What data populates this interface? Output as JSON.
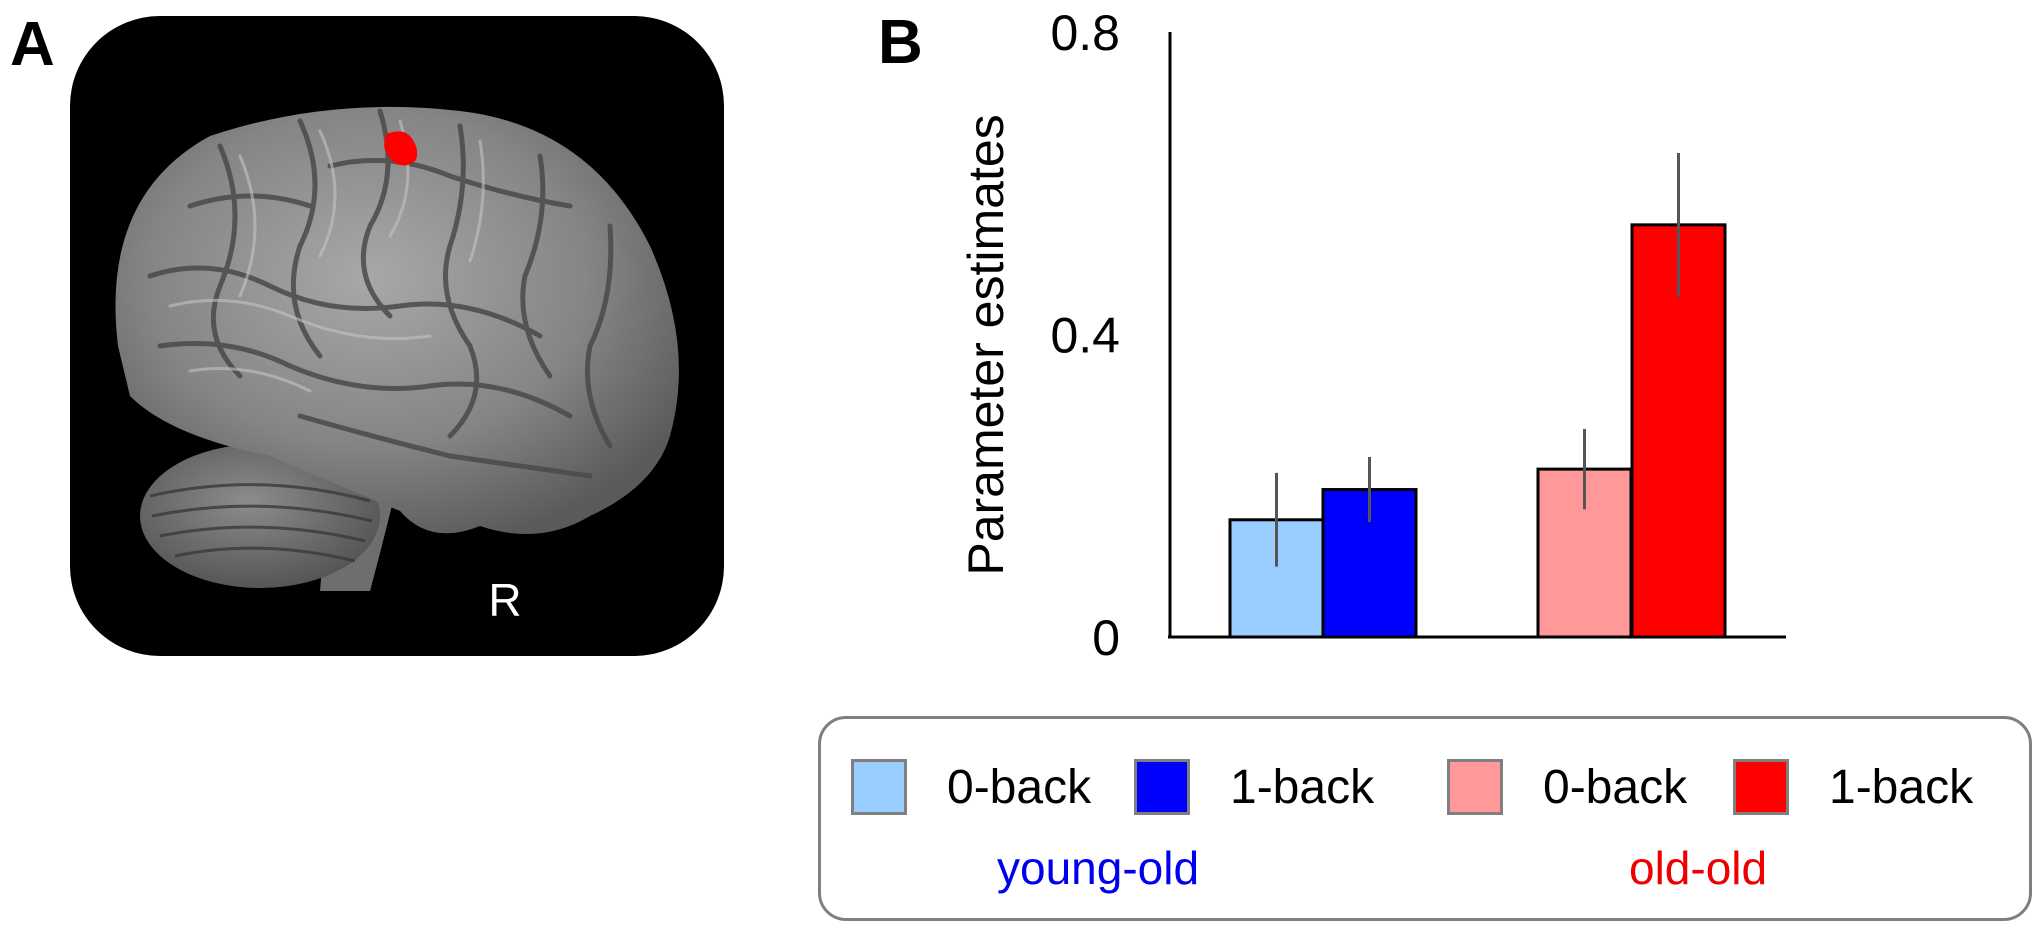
{
  "panels": {
    "a_label": "A",
    "b_label": "B"
  },
  "brain": {
    "hemisphere_label": "R",
    "background_color": "#000000",
    "cortex_color": "#8a8a8a",
    "activation_color": "#ff0000"
  },
  "chart_data": {
    "type": "bar",
    "ylabel": "Parameter estimates",
    "xlabel": "",
    "ylim": [
      0,
      0.8
    ],
    "yticks": [
      "0",
      "0.4",
      "0.8"
    ],
    "ytick_values": [
      0,
      0.4,
      0.8
    ],
    "groups": [
      "young-old",
      "old-old"
    ],
    "series": [
      {
        "name": "0-back",
        "group": "young-old",
        "value": 0.155,
        "error": 0.062,
        "color": "#99ccff"
      },
      {
        "name": "1-back",
        "group": "young-old",
        "value": 0.195,
        "error": 0.043,
        "color": "#0000ff"
      },
      {
        "name": "0-back",
        "group": "old-old",
        "value": 0.222,
        "error": 0.053,
        "color": "#ff9999"
      },
      {
        "name": "1-back",
        "group": "old-old",
        "value": 0.545,
        "error": 0.095,
        "color": "#ff0000"
      }
    ],
    "grid": false,
    "legend_position": "bottom"
  },
  "legend": {
    "items": [
      "0-back",
      "1-back",
      "0-back",
      "1-back"
    ],
    "groups": [
      {
        "label": "young-old",
        "color": "#0000ee"
      },
      {
        "label": "old-old",
        "color": "#ee0000"
      }
    ]
  }
}
